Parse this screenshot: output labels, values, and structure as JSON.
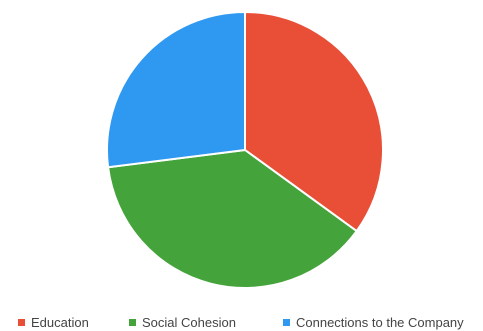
{
  "chart_data": {
    "type": "pie",
    "title": "",
    "slices": [
      {
        "label": "Education",
        "value": 35,
        "color": "#e94f37"
      },
      {
        "label": "Social Cohesion",
        "value": 38,
        "color": "#44a33a"
      },
      {
        "label": "Connections to the Company",
        "value": 27,
        "color": "#2f98f0"
      }
    ],
    "start": "12 o'clock",
    "direction": "clockwise",
    "legend": "bottom"
  }
}
